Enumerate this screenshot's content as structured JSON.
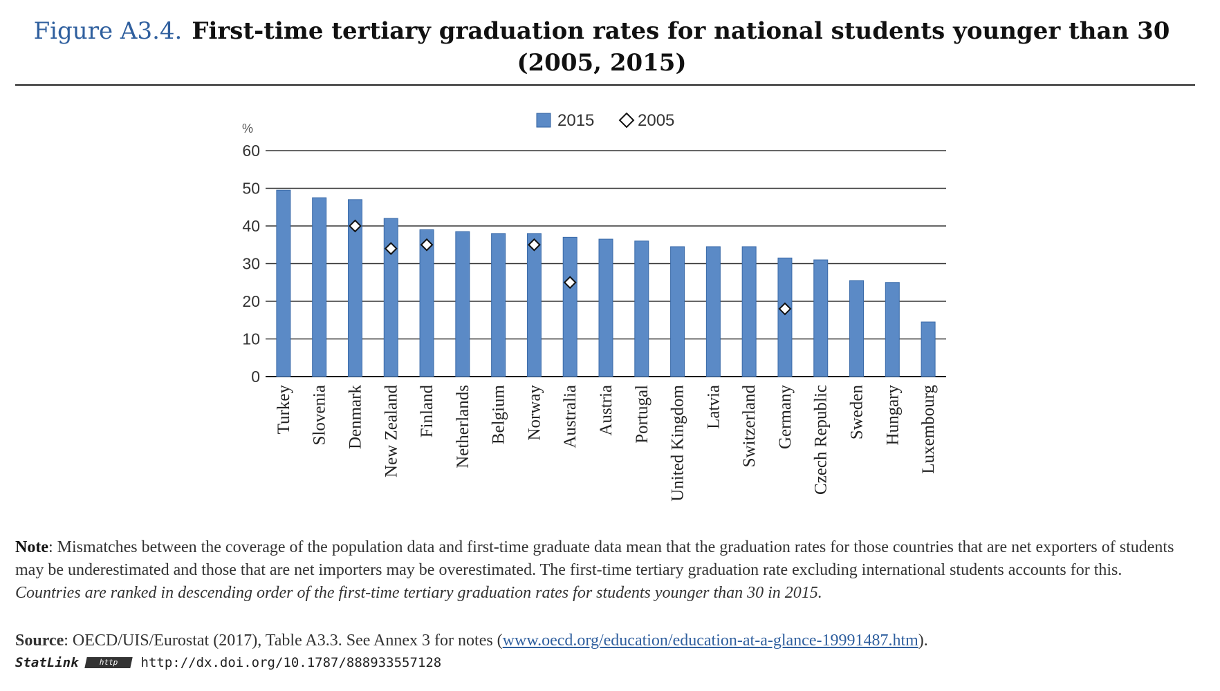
{
  "header": {
    "figure_label": "Figure A3.4.",
    "title_line1": "First-time tertiary graduation rates for national students younger than 30",
    "title_line2": "(2005, 2015)"
  },
  "chart_data": {
    "type": "bar",
    "ylabel": "%",
    "ylim": [
      0,
      60
    ],
    "yticks": [
      0,
      10,
      20,
      30,
      40,
      50,
      60
    ],
    "grid": true,
    "legend_placement": "top-center",
    "categories": [
      "Turkey",
      "Slovenia",
      "Denmark",
      "New Zealand",
      "Finland",
      "Netherlands",
      "Belgium",
      "Norway",
      "Australia",
      "Austria",
      "Portugal",
      "United Kingdom",
      "Latvia",
      "Switzerland",
      "Germany",
      "Czech Republic",
      "Sweden",
      "Hungary",
      "Luxembourg"
    ],
    "series": [
      {
        "name": "2015",
        "marker": "bar",
        "color": "#5b8ac6",
        "values": [
          49.5,
          47.5,
          47,
          42,
          39,
          38.5,
          38,
          38,
          37,
          36.5,
          36,
          34.5,
          34.5,
          34.5,
          31.5,
          31,
          25.5,
          25,
          14.5
        ]
      },
      {
        "name": "2005",
        "marker": "diamond",
        "color": "#ffffff",
        "values": [
          null,
          null,
          40,
          34,
          35,
          null,
          null,
          35,
          25,
          null,
          null,
          null,
          null,
          null,
          18,
          null,
          null,
          null,
          null
        ]
      }
    ]
  },
  "footer": {
    "note_label": "Note",
    "note_text": ": Mismatches between the coverage of the population data and first-time graduate data mean that the graduation rates for those countries that are net exporters of students may be underestimated and those that are net importers may be overestimated. The first-time tertiary graduation rate excluding international students accounts for this.",
    "ranking_note": "Countries are ranked in descending order of the first-time tertiary graduation rates for students younger than 30 in 2015.",
    "source_label": "Source",
    "source_text": ": OECD/UIS/Eurostat (2017), Table A3.3. See Annex 3 for notes (",
    "source_link": "www.oecd.org/education/education-at-a-glance-19991487.htm",
    "source_end": ").",
    "statlink_brand": "StatLink",
    "statlink_logo": "http",
    "statlink_url": "http://dx.doi.org/10.1787/888933557128"
  }
}
